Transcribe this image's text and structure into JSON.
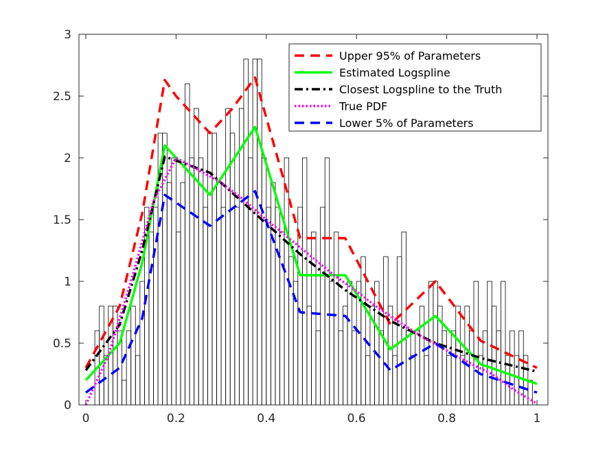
{
  "chart_data": {
    "type": "histogram-with-density-lines",
    "title": "",
    "xlabel": "",
    "ylabel": "",
    "xlim": [
      0,
      1
    ],
    "ylim": [
      0,
      3
    ],
    "xticks": [
      "0",
      "0.2",
      "0.4",
      "0.6",
      "0.8",
      "1"
    ],
    "yticks": [
      "0",
      "0.5",
      "1",
      "1.5",
      "2",
      "2.5",
      "3"
    ],
    "grid": false,
    "legend_position": "top-right",
    "histogram": {
      "bin_width": 0.01,
      "bin_start": 0.02,
      "color": "#000000",
      "heights": [
        0.6,
        0.8,
        0.4,
        0.8,
        0.8,
        0.6,
        0.2,
        0.6,
        0.8,
        0.4,
        1.0,
        1.6,
        1.4,
        1.6,
        2.2,
        2.2,
        1.8,
        2.0,
        1.4,
        1.8,
        2.6,
        2.0,
        2.4,
        2.0,
        1.6,
        2.2,
        2.2,
        1.8,
        1.6,
        2.4,
        2.2,
        1.6,
        2.4,
        2.8,
        2.0,
        2.8,
        2.8,
        2.0,
        1.6,
        1.8,
        1.6,
        1.4,
        2.0,
        1.2,
        1.0,
        1.6,
        2.0,
        0.8,
        1.4,
        0.6,
        1.6,
        2.0,
        1.0,
        1.4,
        0.6,
        0.8,
        1.0,
        0.6,
        1.0,
        1.2,
        0.4,
        0.8,
        1.0,
        0.6,
        1.2,
        0.8,
        0.4,
        1.2,
        1.4,
        0.6,
        0.4,
        0.6,
        0.8,
        0.4,
        1.0,
        1.0,
        0.8,
        0.6,
        0.4,
        0.6,
        0.8,
        0.4,
        0.8,
        0.6,
        1.0,
        0.4,
        0.6,
        1.0,
        0.8,
        0.6,
        1.0,
        0.4,
        0.6,
        0.4,
        0.6,
        0.4,
        0.2
      ]
    },
    "series": [
      {
        "name": "Upper 95% of Parameters",
        "color": "#ff0000",
        "style": "dashed",
        "x": [
          0,
          0.075,
          0.125,
          0.175,
          0.2,
          0.275,
          0.325,
          0.375,
          0.475,
          0.525,
          0.575,
          0.675,
          0.775,
          0.875,
          1.0
        ],
        "y": [
          0.3,
          0.8,
          1.55,
          2.63,
          2.5,
          2.2,
          2.4,
          2.65,
          1.35,
          1.35,
          1.35,
          0.65,
          1.0,
          0.52,
          0.3
        ]
      },
      {
        "name": "Estimated Logspline",
        "color": "#00ff00",
        "style": "solid",
        "x": [
          0,
          0.075,
          0.125,
          0.175,
          0.275,
          0.375,
          0.475,
          0.575,
          0.675,
          0.775,
          0.875,
          1.0
        ],
        "y": [
          0.2,
          0.5,
          1.15,
          2.1,
          1.7,
          2.25,
          1.05,
          1.05,
          0.45,
          0.72,
          0.33,
          0.17
        ]
      },
      {
        "name": "Closest Logspline to the Truth",
        "color": "#000000",
        "style": "dashdot",
        "x": [
          0,
          0.075,
          0.125,
          0.175,
          0.275,
          0.375,
          0.475,
          0.575,
          0.675,
          0.775,
          0.875,
          1.0
        ],
        "y": [
          0.28,
          0.65,
          1.25,
          2.01,
          1.88,
          1.55,
          1.22,
          0.93,
          0.68,
          0.5,
          0.38,
          0.27
        ]
      },
      {
        "name": "True PDF",
        "color": "#ff00ff",
        "style": "dotted",
        "x": [
          0,
          0.05,
          0.1,
          0.15,
          0.2,
          0.25,
          0.3,
          0.35,
          0.4,
          0.45,
          0.5,
          0.55,
          0.6,
          0.65,
          0.7,
          0.75,
          0.8,
          0.85,
          0.9,
          0.95,
          1.0
        ],
        "y": [
          0.0,
          0.4,
          1.0,
          1.65,
          2.0,
          1.9,
          1.8,
          1.66,
          1.5,
          1.35,
          1.2,
          1.05,
          0.92,
          0.78,
          0.66,
          0.54,
          0.44,
          0.34,
          0.25,
          0.12,
          0.01
        ]
      },
      {
        "name": "Lower 5% of Parameters",
        "color": "#0000ff",
        "style": "dashed",
        "x": [
          0,
          0.075,
          0.125,
          0.175,
          0.275,
          0.375,
          0.475,
          0.575,
          0.675,
          0.775,
          0.875,
          1.0
        ],
        "y": [
          0.1,
          0.3,
          0.7,
          1.7,
          1.45,
          1.73,
          0.75,
          0.72,
          0.28,
          0.5,
          0.25,
          0.1
        ]
      }
    ]
  }
}
